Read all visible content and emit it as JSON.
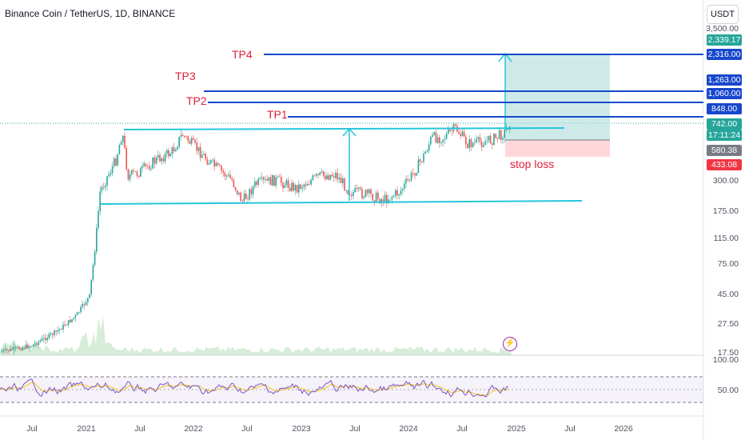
{
  "header": {
    "symbol_title": "Binance Coin / TetherUS, 1D, BINANCE",
    "currency_button": "USDT"
  },
  "price_axis": {
    "labels": [
      "3,500.00",
      "300.00",
      "175.00",
      "115.00",
      "75.00",
      "45.00",
      "27.50",
      "17.50"
    ]
  },
  "price_tags": {
    "t1": {
      "text": "2,339.17",
      "color": "#26a69a"
    },
    "tp4": {
      "text": "2,316.00",
      "color": "#1848cc"
    },
    "tp3": {
      "text": "1,263.00",
      "color": "#1848cc"
    },
    "tp2": {
      "text": "1,060.00",
      "color": "#1848cc"
    },
    "tp1": {
      "text": "848.00",
      "color": "#1848cc"
    },
    "last": {
      "text": "742.00",
      "color": "#26a69a"
    },
    "countdown": {
      "text": "17:11:24",
      "color": "#26a69a"
    },
    "entry": {
      "text": "580.38",
      "color": "#787b86"
    },
    "stop": {
      "text": "433.08",
      "color": "#f23645"
    }
  },
  "rsi_axis": {
    "labels": [
      "100.00",
      "50.00"
    ],
    "rsi_line_color": "#7e57c2",
    "ma_line_color": "#f5c518"
  },
  "time_axis": {
    "labels": [
      "Jul",
      "2021",
      "Jul",
      "2022",
      "Jul",
      "2023",
      "Jul",
      "2024",
      "Jul",
      "2025",
      "Jul",
      "2026"
    ]
  },
  "annotations": {
    "tp1": "TP1",
    "tp2": "TP2",
    "tp3": "TP3",
    "tp4": "TP4",
    "stop_loss": "stop loss"
  },
  "icons": {
    "event": "lightning-bolt-icon"
  },
  "colors": {
    "channel": "#26c6da",
    "tp_line": "#1848cc",
    "label_red": "#e0203a",
    "up": "#26a69a",
    "down": "#ef5350",
    "profit_zone": "#b2dfdb",
    "loss_zone": "#ffcdd2"
  }
}
